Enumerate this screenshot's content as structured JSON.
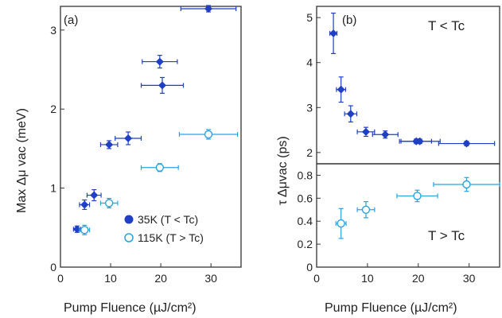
{
  "chart_data": [
    {
      "panel": "(a)",
      "type": "scatter",
      "xlabel": "Pump Fluence (µJ/cm²)",
      "ylabel": "Max  Δμ vac (meV)",
      "xlim": [
        0,
        36
      ],
      "ylim": [
        0,
        3.3
      ],
      "xticks": [
        0,
        10,
        20,
        30
      ],
      "yticks": [
        0,
        1,
        2,
        3
      ],
      "legend_position": "bottom-right",
      "series": [
        {
          "name": "35K (T < Tc)",
          "marker": "filled-diamond",
          "color": "#1f3fc4",
          "points": [
            {
              "x": 3.3,
              "y": 0.48,
              "xerr": 0.7,
              "yerr": 0.04
            },
            {
              "x": 4.8,
              "y": 0.79,
              "xerr": 1.0,
              "yerr": 0.06
            },
            {
              "x": 6.7,
              "y": 0.91,
              "xerr": 1.4,
              "yerr": 0.07
            },
            {
              "x": 9.7,
              "y": 1.55,
              "xerr": 1.7,
              "yerr": 0.05
            },
            {
              "x": 13.5,
              "y": 1.63,
              "xerr": 2.6,
              "yerr": 0.08
            },
            {
              "x": 19.8,
              "y": 2.6,
              "xerr": 3.5,
              "yerr": 0.08
            },
            {
              "x": 20.3,
              "y": 2.3,
              "xerr": 4.2,
              "yerr": 0.1
            },
            {
              "x": 29.5,
              "y": 3.27,
              "xerr": 5.5,
              "yerr": 0.04
            }
          ]
        },
        {
          "name": "115K (T > Tc)",
          "marker": "open-circle",
          "color": "#29a3e0",
          "points": [
            {
              "x": 4.8,
              "y": 0.47,
              "xerr": 1.0,
              "yerr": 0.06
            },
            {
              "x": 9.7,
              "y": 0.81,
              "xerr": 1.7,
              "yerr": 0.06
            },
            {
              "x": 19.8,
              "y": 1.26,
              "xerr": 3.7,
              "yerr": 0.05
            },
            {
              "x": 29.5,
              "y": 1.68,
              "xerr": 5.8,
              "yerr": 0.06
            }
          ]
        }
      ]
    },
    {
      "panel": "(b)",
      "type": "scatter",
      "xlabel": "Pump Fluence (µJ/cm²)",
      "ylabel": "τ Δμvac (ps)",
      "xlim": [
        0,
        36
      ],
      "xticks": [
        0,
        10,
        20,
        30
      ],
      "subplots": [
        {
          "condition": "T < Tc",
          "ylim": [
            1.75,
            5.25
          ],
          "yticks": [
            2,
            3,
            4,
            5
          ],
          "series": [
            {
              "marker": "filled-diamond",
              "color": "#1f3fc4",
              "points": [
                {
                  "x": 3.3,
                  "y": 4.65,
                  "xerr": 0.7,
                  "yerr": 0.45
                },
                {
                  "x": 4.8,
                  "y": 3.4,
                  "xerr": 0.9,
                  "yerr": 0.28
                },
                {
                  "x": 6.7,
                  "y": 2.86,
                  "xerr": 1.2,
                  "yerr": 0.18
                },
                {
                  "x": 9.7,
                  "y": 2.46,
                  "xerr": 1.7,
                  "yerr": 0.1
                },
                {
                  "x": 13.5,
                  "y": 2.4,
                  "xerr": 2.5,
                  "yerr": 0.08
                },
                {
                  "x": 19.6,
                  "y": 2.25,
                  "xerr": 3.0,
                  "yerr": 0.05
                },
                {
                  "x": 20.3,
                  "y": 2.25,
                  "xerr": 4.0,
                  "yerr": 0.05
                },
                {
                  "x": 29.5,
                  "y": 2.2,
                  "xerr": 5.5,
                  "yerr": 0.05
                }
              ]
            }
          ]
        },
        {
          "condition": "T > Tc",
          "ylim": [
            0,
            0.9
          ],
          "yticks": [
            0,
            0.2,
            0.4,
            0.6,
            0.8
          ],
          "series": [
            {
              "marker": "open-circle",
              "color": "#29a3e0",
              "points": [
                {
                  "x": 4.8,
                  "y": 0.38,
                  "xerr": 1.0,
                  "yerr": 0.13
                },
                {
                  "x": 9.7,
                  "y": 0.5,
                  "xerr": 1.7,
                  "yerr": 0.07
                },
                {
                  "x": 19.8,
                  "y": 0.62,
                  "xerr": 4.0,
                  "yerr": 0.05
                },
                {
                  "x": 29.5,
                  "y": 0.72,
                  "xerr": 6.5,
                  "yerr": 0.06
                }
              ]
            }
          ]
        }
      ]
    }
  ]
}
